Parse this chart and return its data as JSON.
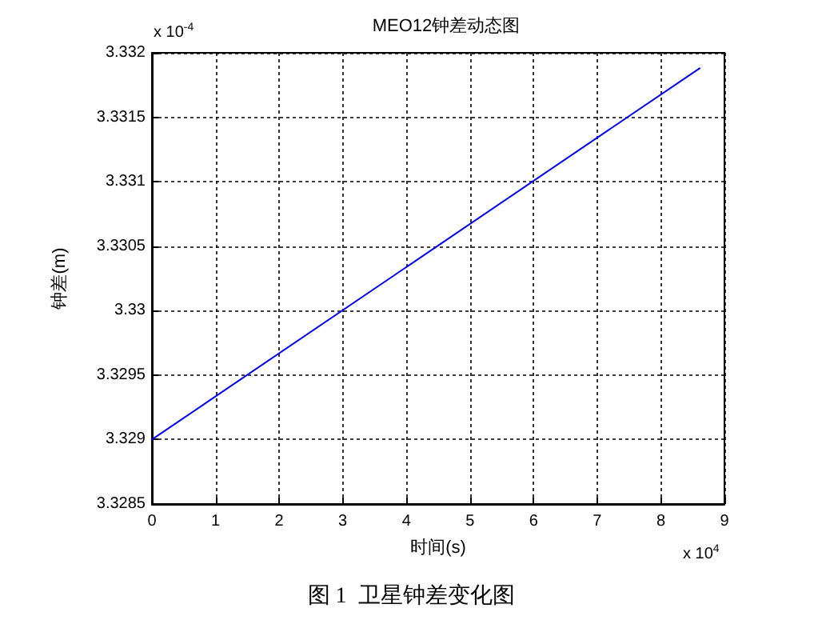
{
  "chart_data": {
    "type": "line",
    "title": "MEO12钟差动态图",
    "xlabel": "时间(s)",
    "ylabel": "钟差(m)",
    "annotations": [
      "x 10$^{-4}$",
      "x 10$^{4}$",
      "图 1  卫星钟差变化图"
    ],
    "x": [
      0,
      8.61
    ],
    "series": [
      {
        "color": "#0000ff",
        "values": [
          3.329,
          3.33188
        ]
      }
    ],
    "xlim": [
      0,
      9
    ],
    "xticks": [
      0,
      1,
      2,
      3,
      4,
      5,
      6,
      7,
      8,
      9
    ],
    "ylim": [
      3.3285,
      3.332
    ],
    "yticks": [
      3.3285,
      3.329,
      3.3295,
      3.33,
      3.3305,
      3.331,
      3.3315,
      3.332
    ],
    "grid": true,
    "marker": "none",
    "line_style": "solid"
  }
}
